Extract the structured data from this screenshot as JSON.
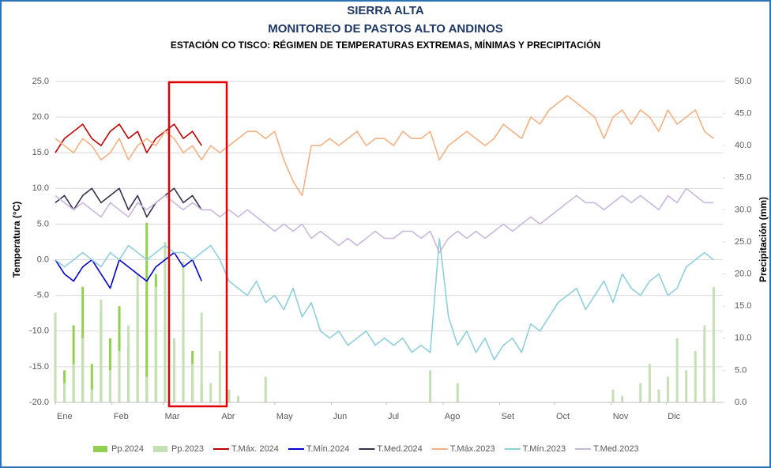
{
  "chart_data": {
    "type": "line",
    "title": "SIERRA ALTA",
    "subtitle": "MONITOREO DE PASTOS ALTO ANDINOS",
    "chart_title": "ESTACIÓN CO TISCO: RÉGIMEN DE TEMPERATURAS EXTREMAS, MÍNIMAS Y PRECIPITACIÓN",
    "y_label": "Temperatura (°C)",
    "y2_label": "Precipitación (mm)",
    "grid": true,
    "xlim": [
      1,
      366
    ],
    "xticks": [
      {
        "value": 1,
        "label": "Ene"
      },
      {
        "value": 32,
        "label": "Feb"
      },
      {
        "value": 60,
        "label": "Mar"
      },
      {
        "value": 91,
        "label": "Abr"
      },
      {
        "value": 121,
        "label": "May"
      },
      {
        "value": 152,
        "label": "Jun"
      },
      {
        "value": 182,
        "label": "Jul"
      },
      {
        "value": 213,
        "label": "Ago"
      },
      {
        "value": 244,
        "label": "Set"
      },
      {
        "value": 274,
        "label": "Oct"
      },
      {
        "value": 305,
        "label": "Nov"
      },
      {
        "value": 335,
        "label": "Dic"
      }
    ],
    "ylim": [
      -20,
      25
    ],
    "yticks": [
      {
        "value": -20,
        "label": "-20.0"
      },
      {
        "value": -15,
        "label": "-15.0"
      },
      {
        "value": -10,
        "label": "-10.0"
      },
      {
        "value": -5,
        "label": "-5.0"
      },
      {
        "value": 0,
        "label": "0.0"
      },
      {
        "value": 5,
        "label": "5.0"
      },
      {
        "value": 10,
        "label": "10.0"
      },
      {
        "value": 15,
        "label": "15.0"
      },
      {
        "value": 20,
        "label": "20.0"
      },
      {
        "value": 25,
        "label": "25.0"
      }
    ],
    "y2lim": [
      0,
      50
    ],
    "y2ticks": [
      {
        "value": 0,
        "label": "0.0"
      },
      {
        "value": 5,
        "label": "5.0"
      },
      {
        "value": 10,
        "label": "10.0"
      },
      {
        "value": 15,
        "label": "15.0"
      },
      {
        "value": 20,
        "label": "20.0"
      },
      {
        "value": 25,
        "label": "25.0"
      },
      {
        "value": 30,
        "label": "30.0"
      },
      {
        "value": 35,
        "label": "35.0"
      },
      {
        "value": 40,
        "label": "40.0"
      },
      {
        "value": 45,
        "label": "45.0"
      },
      {
        "value": 50,
        "label": "50.0"
      }
    ],
    "series": [
      {
        "name": "Pp.2024",
        "type": "bar",
        "axis": "y2",
        "color": "#92d050",
        "x": [
          1,
          6,
          11,
          16,
          21,
          26,
          31,
          36,
          41,
          46,
          51,
          56,
          61,
          66,
          71,
          76,
          81
        ],
        "values": [
          8,
          5,
          12,
          18,
          6,
          14,
          10,
          15,
          9,
          16,
          28,
          20,
          12,
          6,
          14,
          8,
          3
        ]
      },
      {
        "name": "Pp.2023",
        "type": "bar",
        "axis": "y2",
        "color": "#c5e0b4",
        "x": [
          1,
          6,
          11,
          16,
          21,
          26,
          31,
          36,
          41,
          46,
          51,
          56,
          61,
          66,
          71,
          76,
          81,
          86,
          91,
          96,
          101,
          106,
          111,
          116,
          121,
          126,
          131,
          136,
          141,
          146,
          151,
          156,
          161,
          166,
          171,
          176,
          181,
          186,
          191,
          196,
          201,
          206,
          211,
          216,
          221,
          226,
          231,
          236,
          241,
          246,
          251,
          256,
          261,
          266,
          271,
          276,
          281,
          286,
          291,
          296,
          301,
          306,
          311,
          316,
          321,
          326,
          331,
          336,
          341,
          346,
          351,
          356,
          361
        ],
        "values": [
          14,
          3,
          6,
          10,
          2,
          16,
          5,
          8,
          12,
          20,
          4,
          18,
          25,
          10,
          22,
          6,
          14,
          3,
          8,
          2,
          1,
          0,
          0,
          4,
          0,
          0,
          0,
          0,
          0,
          0,
          0,
          0,
          0,
          0,
          0,
          0,
          0,
          0,
          0,
          0,
          0,
          5,
          0,
          0,
          3,
          0,
          0,
          0,
          0,
          0,
          0,
          0,
          0,
          0,
          0,
          0,
          0,
          0,
          0,
          0,
          0,
          2,
          1,
          0,
          3,
          6,
          2,
          4,
          10,
          5,
          8,
          12,
          18
        ]
      },
      {
        "name": "T.Máx. 2024",
        "type": "line",
        "color": "#c00000",
        "x": [
          1,
          6,
          11,
          16,
          21,
          26,
          31,
          36,
          41,
          46,
          51,
          56,
          61,
          66,
          71,
          76,
          81
        ],
        "values": [
          15,
          17,
          18,
          19,
          17,
          16,
          18,
          19,
          17,
          18,
          15,
          17,
          18,
          19,
          17,
          18,
          16
        ]
      },
      {
        "name": "T.Mín.2024",
        "type": "line",
        "color": "#0000cc",
        "x": [
          1,
          6,
          11,
          16,
          21,
          26,
          31,
          36,
          41,
          46,
          51,
          56,
          61,
          66,
          71,
          76,
          81
        ],
        "values": [
          0,
          -2,
          -3,
          -1,
          0,
          -2,
          -4,
          0,
          -1,
          -2,
          -3,
          -1,
          0,
          1,
          -1,
          0,
          -3
        ]
      },
      {
        "name": "T.Med.2024",
        "type": "line",
        "color": "#3a2f4f",
        "x": [
          1,
          6,
          11,
          16,
          21,
          26,
          31,
          36,
          41,
          46,
          51,
          56,
          61,
          66,
          71,
          76,
          81
        ],
        "values": [
          8,
          9,
          7,
          9,
          10,
          8,
          9,
          10,
          7,
          9,
          6,
          8,
          9,
          10,
          8,
          9,
          7
        ]
      },
      {
        "name": "T.Máx.2023",
        "type": "line",
        "color": "#f4b183",
        "x": [
          1,
          6,
          11,
          16,
          21,
          26,
          31,
          36,
          41,
          46,
          51,
          56,
          61,
          66,
          71,
          76,
          81,
          86,
          91,
          96,
          101,
          106,
          111,
          116,
          121,
          126,
          131,
          136,
          141,
          146,
          151,
          156,
          161,
          166,
          171,
          176,
          181,
          186,
          191,
          196,
          201,
          206,
          211,
          216,
          221,
          226,
          231,
          236,
          241,
          246,
          251,
          256,
          261,
          266,
          271,
          276,
          281,
          286,
          291,
          296,
          301,
          306,
          311,
          316,
          321,
          326,
          331,
          336,
          341,
          346,
          351,
          356,
          361
        ],
        "values": [
          17,
          16,
          15,
          17,
          16,
          14,
          15,
          17,
          14,
          16,
          17,
          16,
          18,
          17,
          15,
          16,
          14,
          16,
          15,
          16,
          17,
          18,
          18,
          17,
          18,
          14,
          11,
          9,
          16,
          16,
          17,
          16,
          17,
          18,
          16,
          17,
          17,
          16,
          18,
          17,
          17,
          18,
          14,
          16,
          17,
          18,
          17,
          16,
          17,
          19,
          18,
          17,
          20,
          19,
          21,
          22,
          23,
          22,
          21,
          20,
          17,
          20,
          21,
          19,
          21,
          20,
          18,
          21,
          19,
          20,
          21,
          18,
          17
        ]
      },
      {
        "name": "T.Mín.2023",
        "type": "line",
        "color": "#8fcfdc",
        "x": [
          1,
          6,
          11,
          16,
          21,
          26,
          31,
          36,
          41,
          46,
          51,
          56,
          61,
          66,
          71,
          76,
          81,
          86,
          91,
          96,
          101,
          106,
          111,
          116,
          121,
          126,
          131,
          136,
          141,
          146,
          151,
          156,
          161,
          166,
          171,
          176,
          181,
          186,
          191,
          196,
          201,
          206,
          211,
          216,
          221,
          226,
          231,
          236,
          241,
          246,
          251,
          256,
          261,
          266,
          271,
          276,
          281,
          286,
          291,
          296,
          301,
          306,
          311,
          316,
          321,
          326,
          331,
          336,
          341,
          346,
          351,
          356,
          361
        ],
        "values": [
          0,
          -1,
          0,
          1,
          0,
          -1,
          1,
          0,
          2,
          1,
          0,
          1,
          2,
          1,
          1,
          0,
          1,
          2,
          0,
          -3,
          -4,
          -5,
          -3,
          -6,
          -5,
          -7,
          -4,
          -8,
          -6,
          -10,
          -11,
          -10,
          -12,
          -11,
          -10,
          -12,
          -11,
          -12,
          -11,
          -13,
          -12,
          -13,
          3,
          -8,
          -12,
          -10,
          -13,
          -11,
          -14,
          -12,
          -11,
          -13,
          -9,
          -10,
          -8,
          -6,
          -5,
          -4,
          -7,
          -5,
          -3,
          -6,
          -2,
          -4,
          -5,
          -3,
          -2,
          -5,
          -4,
          -1,
          0,
          1,
          0
        ]
      },
      {
        "name": "T.Med.2023",
        "type": "line",
        "color": "#c9b8dc",
        "x": [
          1,
          6,
          11,
          16,
          21,
          26,
          31,
          36,
          41,
          46,
          51,
          56,
          61,
          66,
          71,
          76,
          81,
          86,
          91,
          96,
          101,
          106,
          111,
          116,
          121,
          126,
          131,
          136,
          141,
          146,
          151,
          156,
          161,
          166,
          171,
          176,
          181,
          186,
          191,
          196,
          201,
          206,
          211,
          216,
          221,
          226,
          231,
          236,
          241,
          246,
          251,
          256,
          261,
          266,
          271,
          276,
          281,
          286,
          291,
          296,
          301,
          306,
          311,
          316,
          321,
          326,
          331,
          336,
          341,
          346,
          351,
          356,
          361
        ],
        "values": [
          9,
          8,
          7,
          8,
          7,
          6,
          8,
          7,
          6,
          8,
          7,
          8,
          9,
          8,
          7,
          8,
          7,
          7,
          6,
          7,
          6,
          7,
          6,
          5,
          4,
          5,
          4,
          5,
          3,
          4,
          3,
          2,
          3,
          2,
          3,
          4,
          3,
          3,
          4,
          4,
          3,
          4,
          1,
          3,
          4,
          3,
          4,
          3,
          4,
          5,
          4,
          5,
          6,
          5,
          6,
          7,
          8,
          9,
          8,
          8,
          7,
          8,
          9,
          8,
          9,
          8,
          7,
          9,
          8,
          10,
          9,
          8,
          8
        ]
      }
    ]
  }
}
